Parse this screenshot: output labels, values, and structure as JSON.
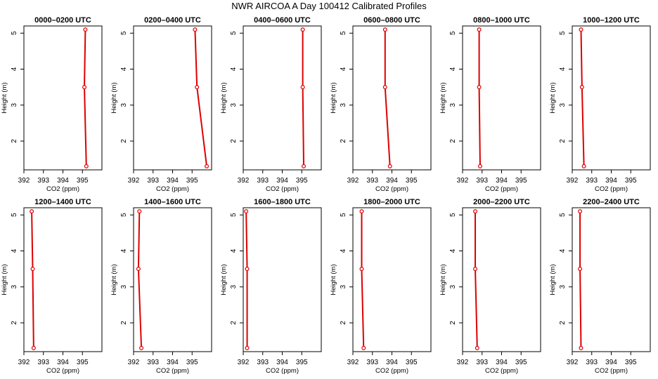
{
  "chart_data": {
    "type": "line",
    "title": "NWR AIRCOA A  Day 100412  Calibrated Profiles",
    "xlabel": "CO2 (ppm)",
    "ylabel": "Height (m)",
    "xlim": [
      392,
      396
    ],
    "xticks": [
      "392",
      "393",
      "394",
      "395"
    ],
    "ylim": [
      1.2,
      5.2
    ],
    "yticks": [
      "2",
      "3",
      "4",
      "5"
    ],
    "line_color": "#dd0000",
    "heights": [
      5.1,
      3.5,
      1.3
    ],
    "panels": [
      {
        "title": "0000–0200 UTC",
        "co2": [
          395.15,
          395.1,
          395.2
        ]
      },
      {
        "title": "0200–0400 UTC",
        "co2": [
          395.15,
          395.25,
          395.75
        ]
      },
      {
        "title": "0400–0600 UTC",
        "co2": [
          395.05,
          395.05,
          395.1
        ]
      },
      {
        "title": "0600–0800 UTC",
        "co2": [
          393.65,
          393.65,
          393.9
        ]
      },
      {
        "title": "0800–1000 UTC",
        "co2": [
          392.85,
          392.85,
          392.9
        ]
      },
      {
        "title": "1000–1200 UTC",
        "co2": [
          392.45,
          392.5,
          392.6
        ]
      },
      {
        "title": "1200–1400 UTC",
        "co2": [
          392.4,
          392.45,
          392.5
        ]
      },
      {
        "title": "1400–1600 UTC",
        "co2": [
          392.3,
          392.25,
          392.4
        ]
      },
      {
        "title": "1600–1800 UTC",
        "co2": [
          392.15,
          392.2,
          392.2
        ]
      },
      {
        "title": "1800–2000 UTC",
        "co2": [
          392.45,
          392.45,
          392.55
        ]
      },
      {
        "title": "2000–2200 UTC",
        "co2": [
          392.65,
          392.65,
          392.75
        ]
      },
      {
        "title": "2200–2400 UTC",
        "co2": [
          392.4,
          392.4,
          392.45
        ]
      }
    ]
  }
}
